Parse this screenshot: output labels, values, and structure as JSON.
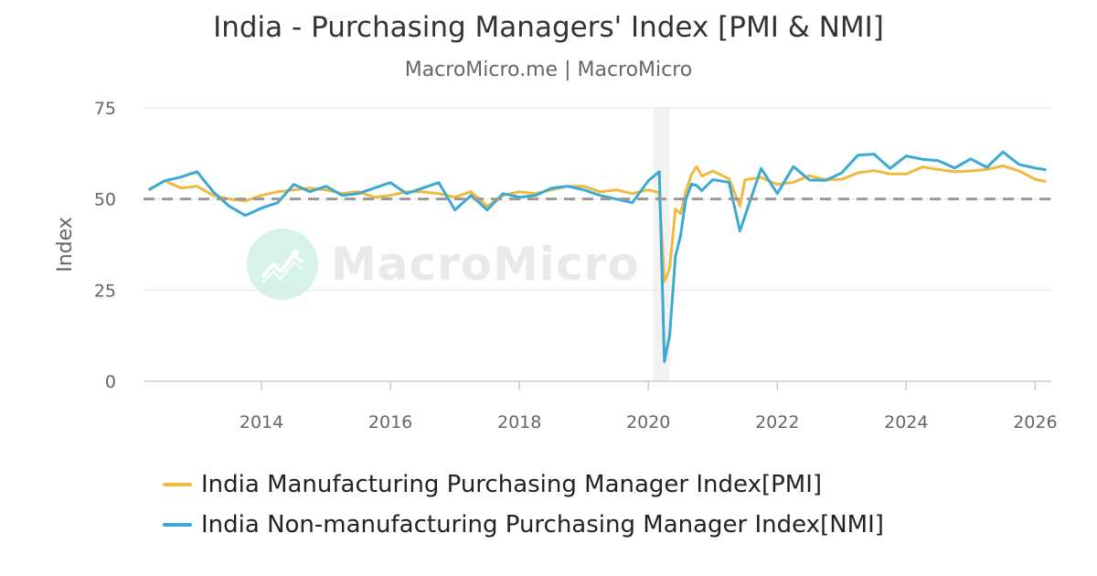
{
  "header": {
    "title": "India - Purchasing Managers' Index [PMI & NMI]",
    "subtitle": "MacroMicro.me | MacroMicro"
  },
  "watermark": {
    "text": "MacroMicro",
    "icon": "chart-trend-icon"
  },
  "colors": {
    "pmi": "#f0b940",
    "nmi": "#3ba9d4",
    "threshold": "#999999",
    "recession_band": "#f2f2f2",
    "grid": "#e6e6e6"
  },
  "chart_data": {
    "type": "line",
    "title": "India - Purchasing Managers' Index [PMI & NMI]",
    "subtitle": "MacroMicro.me | MacroMicro",
    "ylabel": "Index",
    "xlabel": "",
    "ylim": [
      0,
      75
    ],
    "xlim": [
      2012.17,
      2026.25
    ],
    "y_ticks": [
      0,
      25,
      50,
      75
    ],
    "x_ticks": [
      2014,
      2016,
      2018,
      2020,
      2022,
      2024,
      2026
    ],
    "grid": true,
    "legend_position": "bottom",
    "reference_line": {
      "y": 50,
      "style": "dashed"
    },
    "shaded_band": {
      "x_start": 2020.08,
      "x_end": 2020.33
    },
    "series": [
      {
        "name": "India Manufacturing Purchasing Manager Index[PMI]",
        "x": [
          2012.25,
          2012.5,
          2012.75,
          2013.0,
          2013.25,
          2013.5,
          2013.75,
          2014.0,
          2014.25,
          2014.5,
          2014.75,
          2015.0,
          2015.25,
          2015.5,
          2015.75,
          2016.0,
          2016.25,
          2016.5,
          2016.75,
          2017.0,
          2017.25,
          2017.5,
          2017.75,
          2018.0,
          2018.25,
          2018.5,
          2018.75,
          2019.0,
          2019.25,
          2019.5,
          2019.75,
          2020.0,
          2020.17,
          2020.25,
          2020.33,
          2020.42,
          2020.5,
          2020.58,
          2020.67,
          2020.75,
          2020.83,
          2021.0,
          2021.25,
          2021.42,
          2021.5,
          2021.75,
          2022.0,
          2022.25,
          2022.5,
          2022.75,
          2023.0,
          2023.25,
          2023.5,
          2023.75,
          2024.0,
          2024.25,
          2024.5,
          2024.75,
          2025.0,
          2025.25,
          2025.5,
          2025.75,
          2026.0,
          2026.17
        ],
        "values": [
          52.5,
          55.0,
          53.0,
          53.5,
          51.0,
          50.0,
          49.5,
          51.0,
          52.0,
          52.5,
          53.0,
          52.5,
          51.5,
          52.0,
          50.5,
          51.0,
          52.0,
          52.0,
          51.5,
          50.5,
          52.0,
          48.0,
          51.0,
          52.0,
          51.5,
          52.5,
          53.5,
          53.5,
          52.0,
          52.5,
          51.5,
          52.5,
          51.8,
          27.4,
          30.8,
          47.2,
          46.0,
          52.0,
          56.8,
          58.9,
          56.3,
          57.7,
          55.5,
          48.1,
          55.3,
          55.9,
          54.0,
          54.6,
          56.4,
          55.3,
          55.4,
          57.2,
          57.8,
          56.9,
          56.9,
          58.8,
          58.1,
          57.5,
          57.7,
          58.1,
          59.1,
          57.7,
          55.4,
          54.8
        ]
      },
      {
        "name": "India Non-manufacturing Purchasing Manager Index[NMI]",
        "x": [
          2012.25,
          2012.5,
          2012.75,
          2013.0,
          2013.25,
          2013.5,
          2013.75,
          2014.0,
          2014.25,
          2014.5,
          2014.75,
          2015.0,
          2015.25,
          2015.5,
          2015.75,
          2016.0,
          2016.25,
          2016.5,
          2016.75,
          2017.0,
          2017.25,
          2017.5,
          2017.75,
          2018.0,
          2018.25,
          2018.5,
          2018.75,
          2019.0,
          2019.25,
          2019.5,
          2019.75,
          2020.0,
          2020.17,
          2020.25,
          2020.33,
          2020.42,
          2020.5,
          2020.58,
          2020.67,
          2020.75,
          2020.83,
          2021.0,
          2021.25,
          2021.42,
          2021.5,
          2021.75,
          2022.0,
          2022.25,
          2022.5,
          2022.75,
          2023.0,
          2023.25,
          2023.5,
          2023.75,
          2024.0,
          2024.25,
          2024.5,
          2024.75,
          2025.0,
          2025.25,
          2025.5,
          2025.75,
          2026.0,
          2026.17
        ],
        "values": [
          52.5,
          55.0,
          56.0,
          57.5,
          52.0,
          48.0,
          45.5,
          47.5,
          49.0,
          54.0,
          52.0,
          53.5,
          51.0,
          51.5,
          53.0,
          54.5,
          51.5,
          53.0,
          54.5,
          47.0,
          51.0,
          47.0,
          51.5,
          50.5,
          51.0,
          53.0,
          53.5,
          52.5,
          51.0,
          50.0,
          49.0,
          55.0,
          57.5,
          5.4,
          12.6,
          34.2,
          40.0,
          49.8,
          54.1,
          53.7,
          52.3,
          55.3,
          54.6,
          41.2,
          45.4,
          58.4,
          51.5,
          58.9,
          55.2,
          55.1,
          57.2,
          62.0,
          62.3,
          58.4,
          61.8,
          60.9,
          60.5,
          58.5,
          61.0,
          58.7,
          62.9,
          59.5,
          58.5,
          58.0
        ]
      }
    ]
  }
}
